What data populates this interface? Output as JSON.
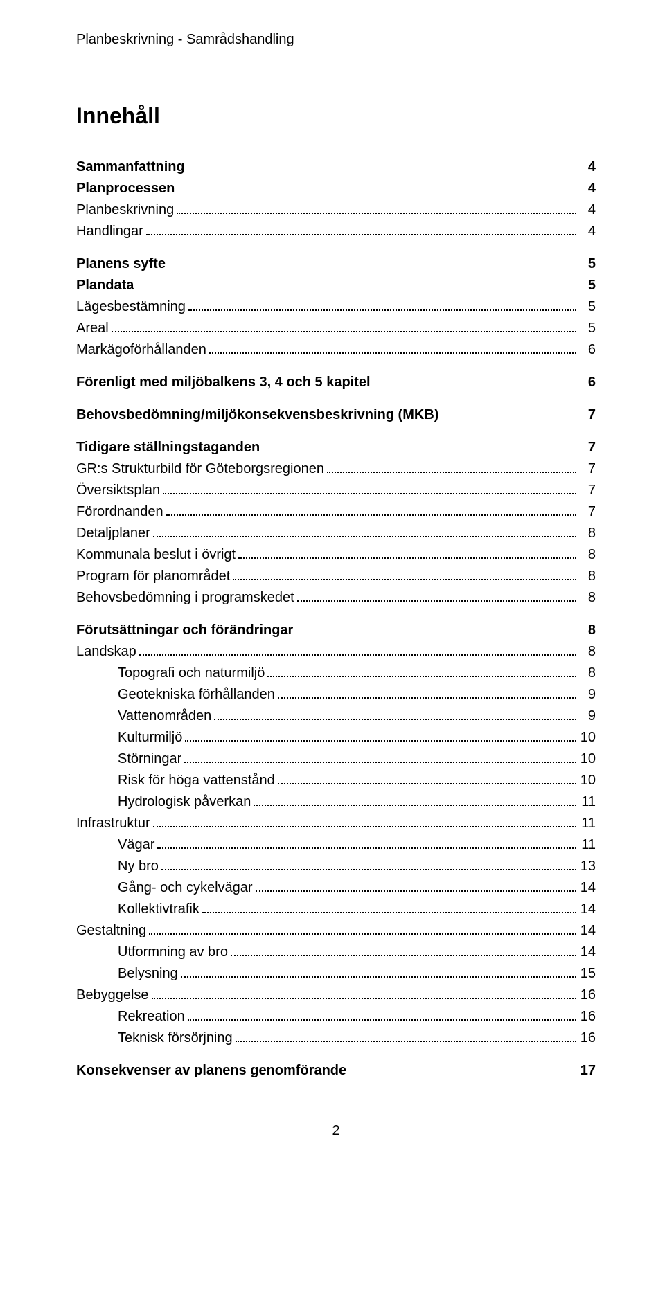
{
  "header": {
    "text": "Planbeskrivning - Samrådshandling"
  },
  "title": "Innehåll",
  "page_number": "2",
  "toc": [
    {
      "label": "Sammanfattning",
      "page": "4",
      "indent": 0,
      "bold": true,
      "leader": false,
      "gap": "lg"
    },
    {
      "label": "Planprocessen",
      "page": "4",
      "indent": 0,
      "bold": true,
      "leader": false
    },
    {
      "label": "Planbeskrivning",
      "page": "4",
      "indent": 0,
      "bold": false,
      "leader": true
    },
    {
      "label": "Handlingar",
      "page": "4",
      "indent": 0,
      "bold": false,
      "leader": true
    },
    {
      "label": "Planens syfte",
      "page": "5",
      "indent": 0,
      "bold": true,
      "leader": false,
      "gap": "sm"
    },
    {
      "label": "Plandata",
      "page": "5",
      "indent": 0,
      "bold": true,
      "leader": false
    },
    {
      "label": "Lägesbestämning",
      "page": "5",
      "indent": 0,
      "bold": false,
      "leader": true
    },
    {
      "label": "Areal",
      "page": "5",
      "indent": 0,
      "bold": false,
      "leader": true
    },
    {
      "label": "Markägoförhållanden",
      "page": "6",
      "indent": 0,
      "bold": false,
      "leader": true
    },
    {
      "label": "Förenligt med miljöbalkens 3, 4 och 5 kapitel",
      "page": "6",
      "indent": 0,
      "bold": true,
      "leader": false,
      "gap": "sm"
    },
    {
      "label": "Behovsbedömning/miljökonsekvensbeskrivning (MKB)",
      "page": "7",
      "indent": 0,
      "bold": true,
      "leader": false,
      "gap": "sm"
    },
    {
      "label": "Tidigare ställningstaganden",
      "page": "7",
      "indent": 0,
      "bold": true,
      "leader": false,
      "gap": "sm"
    },
    {
      "label": "GR:s Strukturbild för Göteborgsregionen",
      "page": "7",
      "indent": 0,
      "bold": false,
      "leader": true
    },
    {
      "label": "Översiktsplan",
      "page": "7",
      "indent": 0,
      "bold": false,
      "leader": true
    },
    {
      "label": "Förordnanden",
      "page": "7",
      "indent": 0,
      "bold": false,
      "leader": true
    },
    {
      "label": "Detaljplaner",
      "page": "8",
      "indent": 0,
      "bold": false,
      "leader": true
    },
    {
      "label": "Kommunala beslut i övrigt",
      "page": "8",
      "indent": 0,
      "bold": false,
      "leader": true
    },
    {
      "label": "Program för planområdet",
      "page": "8",
      "indent": 0,
      "bold": false,
      "leader": true
    },
    {
      "label": "Behovsbedömning i programskedet",
      "page": "8",
      "indent": 0,
      "bold": false,
      "leader": true
    },
    {
      "label": "Förutsättningar och förändringar",
      "page": "8",
      "indent": 0,
      "bold": true,
      "leader": false,
      "gap": "sm"
    },
    {
      "label": "Landskap",
      "page": "8",
      "indent": 0,
      "bold": false,
      "leader": true
    },
    {
      "label": "Topografi och naturmiljö",
      "page": "8",
      "indent": 1,
      "bold": false,
      "leader": true
    },
    {
      "label": "Geotekniska förhållanden",
      "page": "9",
      "indent": 1,
      "bold": false,
      "leader": true
    },
    {
      "label": "Vattenområden",
      "page": "9",
      "indent": 1,
      "bold": false,
      "leader": true
    },
    {
      "label": "Kulturmiljö",
      "page": "10",
      "indent": 1,
      "bold": false,
      "leader": true
    },
    {
      "label": "Störningar",
      "page": "10",
      "indent": 1,
      "bold": false,
      "leader": true
    },
    {
      "label": "Risk för höga vattenstånd",
      "page": "10",
      "indent": 1,
      "bold": false,
      "leader": true
    },
    {
      "label": "Hydrologisk påverkan",
      "page": "11",
      "indent": 1,
      "bold": false,
      "leader": true
    },
    {
      "label": "Infrastruktur",
      "page": "11",
      "indent": 0,
      "bold": false,
      "leader": true
    },
    {
      "label": "Vägar ",
      "page": "11",
      "indent": 1,
      "bold": false,
      "leader": true
    },
    {
      "label": "Ny bro",
      "page": "13",
      "indent": 1,
      "bold": false,
      "leader": true
    },
    {
      "label": "Gång- och cykelvägar",
      "page": "14",
      "indent": 1,
      "bold": false,
      "leader": true
    },
    {
      "label": "Kollektivtrafik",
      "page": "14",
      "indent": 1,
      "bold": false,
      "leader": true
    },
    {
      "label": "Gestaltning",
      "page": "14",
      "indent": 0,
      "bold": false,
      "leader": true
    },
    {
      "label": "Utformning av bro",
      "page": "14",
      "indent": 1,
      "bold": false,
      "leader": true
    },
    {
      "label": "Belysning",
      "page": "15",
      "indent": 1,
      "bold": false,
      "leader": true
    },
    {
      "label": "Bebyggelse",
      "page": "16",
      "indent": 0,
      "bold": false,
      "leader": true
    },
    {
      "label": "Rekreation",
      "page": "16",
      "indent": 1,
      "bold": false,
      "leader": true
    },
    {
      "label": "Teknisk försörjning",
      "page": "16",
      "indent": 1,
      "bold": false,
      "leader": true
    },
    {
      "label": "Konsekvenser av planens genomförande",
      "page": "17",
      "indent": 0,
      "bold": true,
      "leader": false,
      "gap": "sm"
    }
  ]
}
